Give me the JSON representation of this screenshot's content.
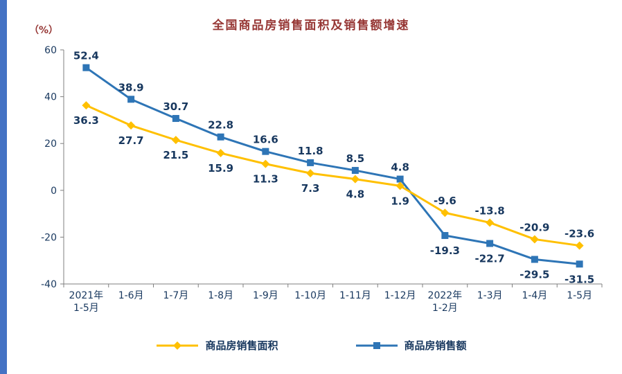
{
  "page": {
    "title": "全国商品房销售面积及销售额增速",
    "y_unit_label": "（%）"
  },
  "chart_data": {
    "type": "line",
    "categories": [
      [
        "2021年",
        "1-5月"
      ],
      [
        "1-6月"
      ],
      [
        "1-7月"
      ],
      [
        "1-8月"
      ],
      [
        "1-9月"
      ],
      [
        "1-10月"
      ],
      [
        "1-11月"
      ],
      [
        "1-12月"
      ],
      [
        "2022年",
        "1-2月"
      ],
      [
        "1-3月"
      ],
      [
        "1-4月"
      ],
      [
        "1-5月"
      ]
    ],
    "series": [
      {
        "name": "商品房销售面积",
        "marker": "diamond",
        "color": "#FFC000",
        "values": [
          36.3,
          27.7,
          21.5,
          15.9,
          11.3,
          7.3,
          4.8,
          1.9,
          -9.6,
          -13.8,
          -20.9,
          -23.6
        ]
      },
      {
        "name": "商品房销售额",
        "marker": "square",
        "color": "#2E75B6",
        "values": [
          52.4,
          38.9,
          30.7,
          22.8,
          16.6,
          11.8,
          8.5,
          4.8,
          -19.3,
          -22.7,
          -29.5,
          -31.5
        ]
      }
    ],
    "ylim": [
      -40,
      60
    ],
    "yticks": [
      60,
      40,
      20,
      0,
      -20,
      -40
    ],
    "grid": false,
    "legend_position": "bottom",
    "data_labels": true
  },
  "colors": {
    "left_bar": "#4472C4",
    "title": "#963634",
    "unit_label": "#963634",
    "data_label": "#17375E",
    "tick_label": "#17375E",
    "axis_line": "#7F7F7F"
  }
}
